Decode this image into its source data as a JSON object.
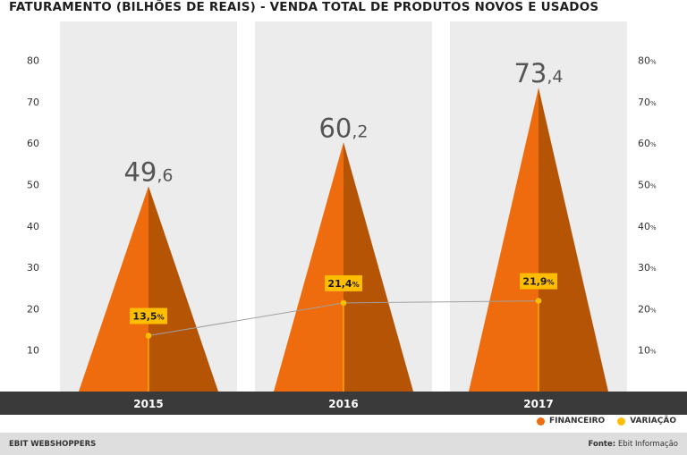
{
  "title": "FATURAMENTO (BILHÕES DE REAIS)  - VENDA TOTAL DE PRODUTOS NOVOS E USADOS",
  "footer": {
    "left": "EBIT WEBSHOPPERS",
    "source_label": "Fonte:",
    "source_value": "Ebit Informação"
  },
  "legend": {
    "financeiro": "FINANCEIRO",
    "variacao": "VARIAÇÃO"
  },
  "colors": {
    "orange": "#ee6c0d",
    "orange_dark": "#b55405",
    "yellow": "#ffbd00",
    "panel": "#ececec",
    "base_bar": "#3a3a3a",
    "line": "#a0a0a0"
  },
  "chart_data": {
    "type": "area",
    "categories": [
      "2015",
      "2016",
      "2017"
    ],
    "series": [
      {
        "name": "FINANCEIRO",
        "values": [
          49.6,
          60.2,
          73.4
        ],
        "labels": [
          {
            "int": "49",
            "dec": ",6"
          },
          {
            "int": "60",
            "dec": ",2"
          },
          {
            "int": "73",
            "dec": ",4"
          }
        ]
      },
      {
        "name": "VARIAÇÃO",
        "values": [
          13.5,
          21.4,
          21.9
        ],
        "labels": [
          {
            "int": "13,5",
            "unit": "%"
          },
          {
            "int": "21,4",
            "unit": "%"
          },
          {
            "int": "21,9",
            "unit": "%"
          }
        ]
      }
    ],
    "y_left": {
      "ticks": [
        "10",
        "20",
        "30",
        "40",
        "50",
        "60",
        "70",
        "80"
      ],
      "range": [
        0,
        80
      ]
    },
    "y_right": {
      "ticks": [
        {
          "v": "10",
          "u": "%"
        },
        {
          "v": "20",
          "u": "%"
        },
        {
          "v": "30",
          "u": "%"
        },
        {
          "v": "40",
          "u": "%"
        },
        {
          "v": "50",
          "u": "%"
        },
        {
          "v": "60",
          "u": "%"
        },
        {
          "v": "70",
          "u": "%"
        },
        {
          "v": "80",
          "u": "%"
        }
      ],
      "range": [
        0,
        80
      ]
    },
    "grid": false,
    "legend_position": "bottom-right"
  }
}
